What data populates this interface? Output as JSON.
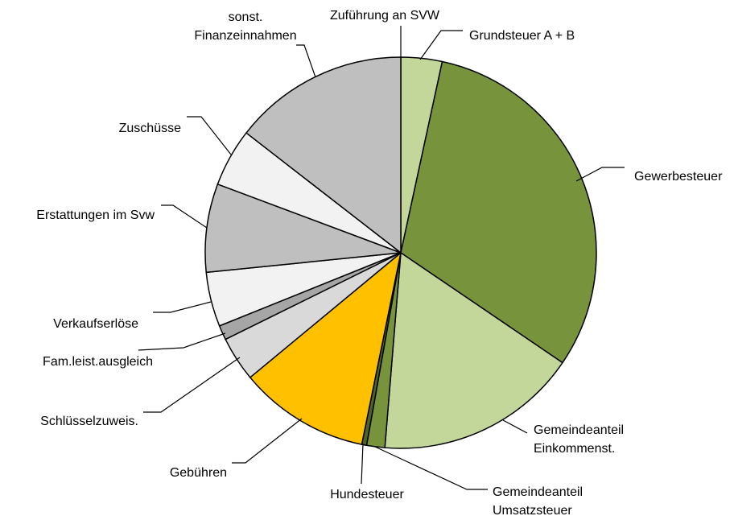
{
  "chart_data": {
    "type": "pie",
    "categories": [
      [
        "Zuführung an SVW"
      ],
      [
        "Grundsteuer A + B"
      ],
      [
        "Gewerbesteuer"
      ],
      [
        "Gemeindeanteil",
        "Einkommenst."
      ],
      [
        "Gemeindeanteil",
        "Umsatzsteuer"
      ],
      [
        "Hundesteuer"
      ],
      [
        "Gebühren"
      ],
      [
        "Schlüsselzuweis."
      ],
      [
        "Fam.leist.ausgleich"
      ],
      [
        "Verkaufserlöse"
      ],
      [
        "Erstattungen im Svw"
      ],
      [
        "Zuschüsse"
      ],
      [
        "sonst.",
        "Finanzeinnahmen"
      ]
    ],
    "values": [
      0,
      3.4,
      31.1,
      16.8,
      1.5,
      0.4,
      10.8,
      3.7,
      1.2,
      4.5,
      7.3,
      4.8,
      14.5
    ],
    "colors": [
      "#77933c",
      "#c4d79b",
      "#77933c",
      "#c4d79b",
      "#77933c",
      "#4f6228",
      "#ffc000",
      "#d9d9d9",
      "#a6a6a6",
      "#f2f2f2",
      "#bfbfbf",
      "#f2f2f2",
      "#bfbfbf"
    ]
  }
}
